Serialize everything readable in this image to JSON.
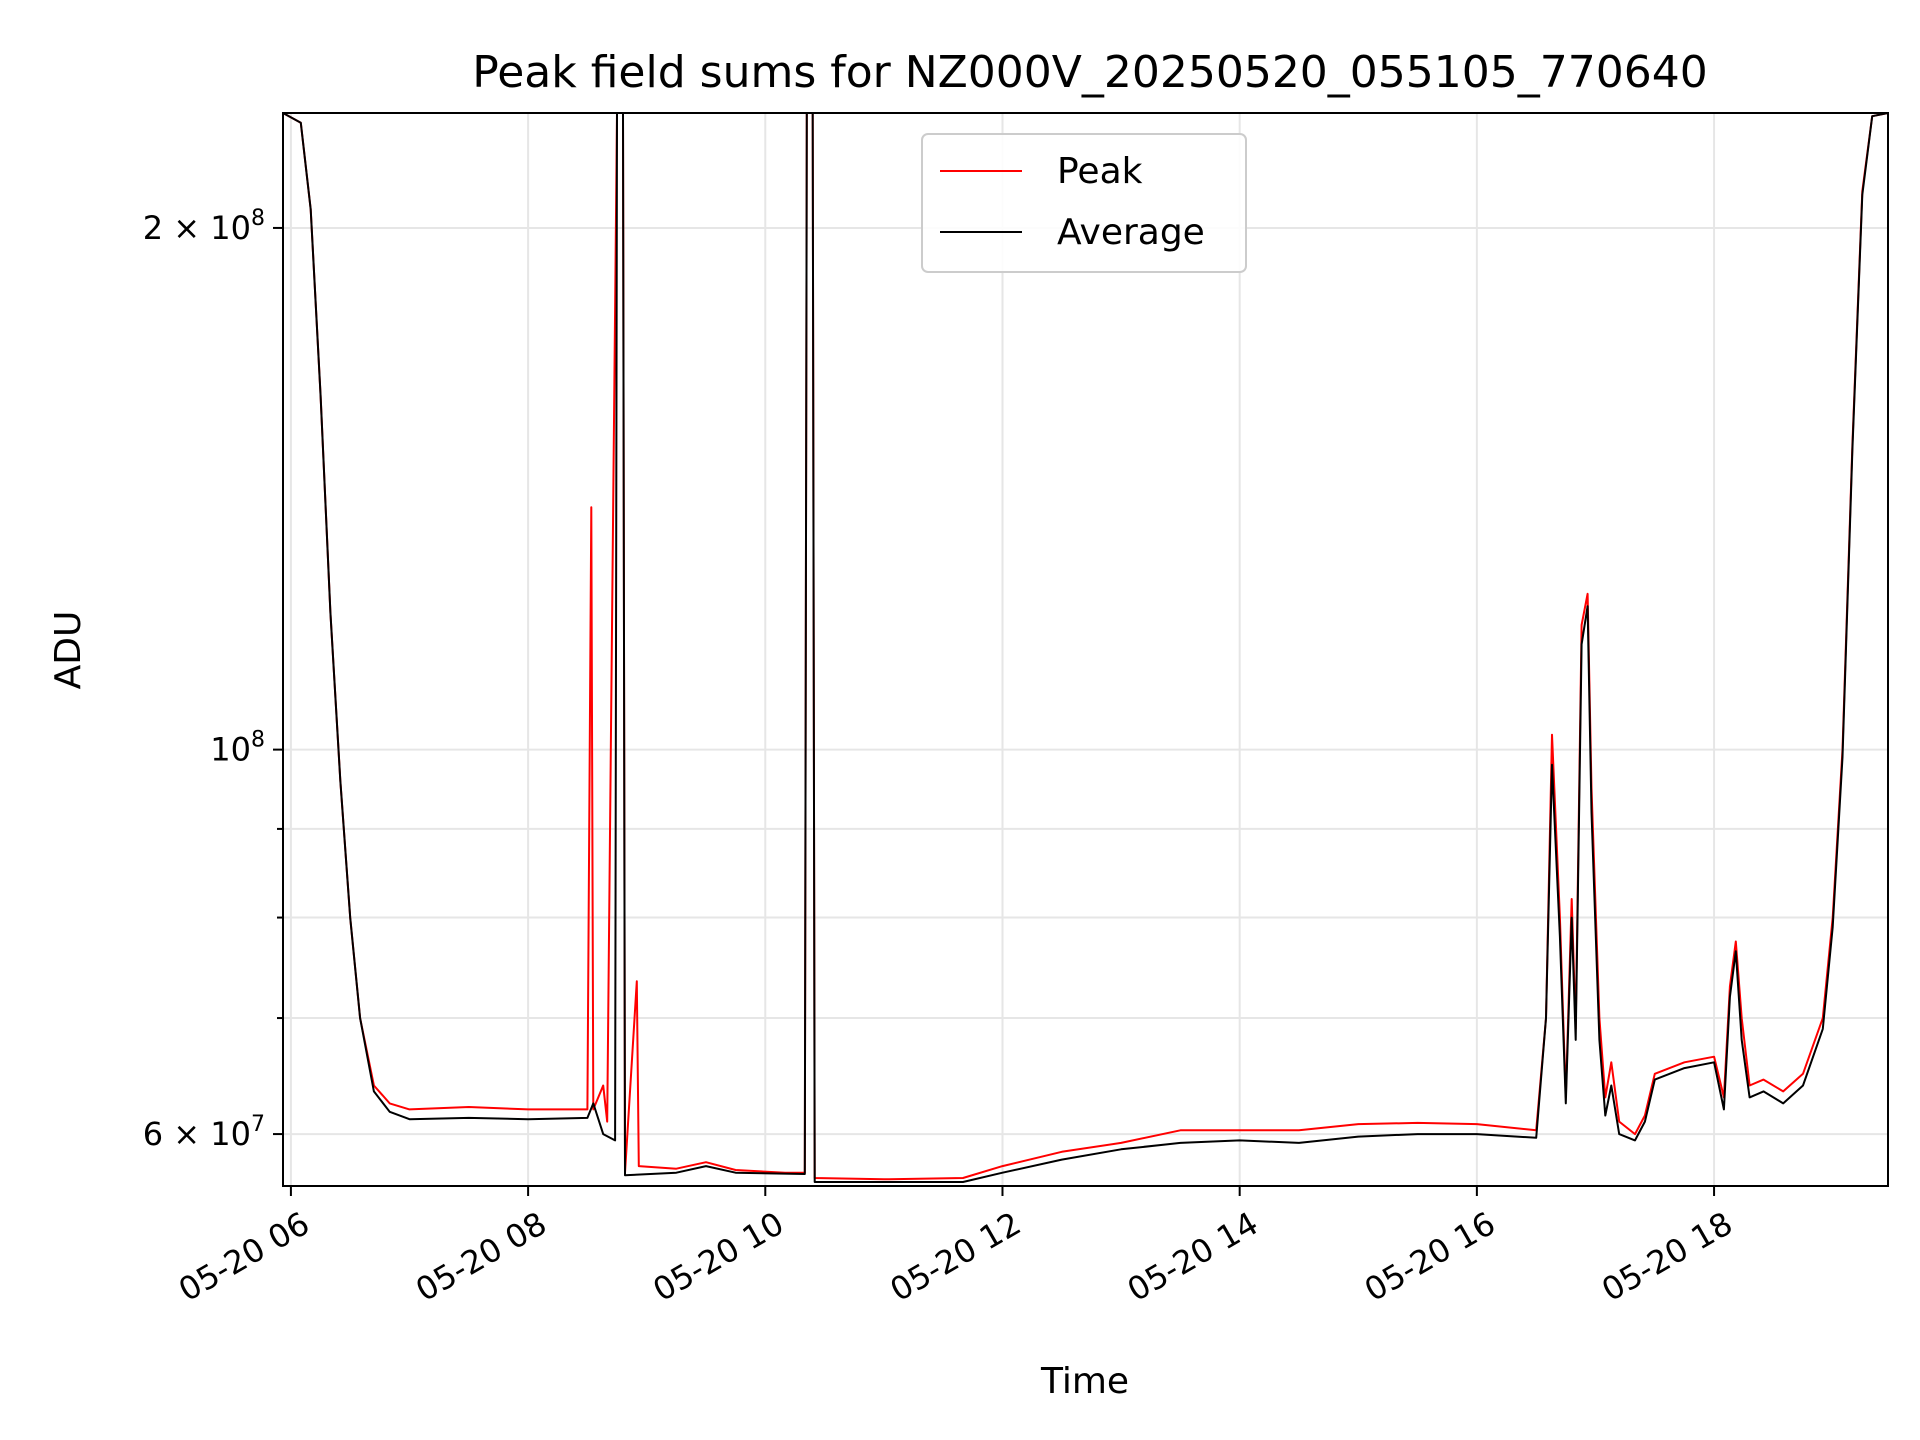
{
  "chart_data": {
    "type": "line",
    "title": "Peak field sums for NZ000V_20250520_055105_770640",
    "xlabel": "Time",
    "ylabel": "ADU",
    "y_scale": "log",
    "ylim": [
      56000000,
      233000000
    ],
    "xlim": [
      "05-20 05:56",
      "05-20 19:28"
    ],
    "x_ticks": [
      "05-20 06",
      "05-20 08",
      "05-20 10",
      "05-20 12",
      "05-20 14",
      "05-20 16",
      "05-20 18"
    ],
    "x_tick_values": [
      "05-20 06:00",
      "05-20 08:00",
      "05-20 10:00",
      "05-20 12:00",
      "05-20 14:00",
      "05-20 16:00",
      "05-20 18:00"
    ],
    "y_ticks": [
      {
        "label_base": "2 × 10",
        "label_exp": "8",
        "value": 200000000
      },
      {
        "label_base": "10",
        "label_exp": "8",
        "value": 100000000
      },
      {
        "label_base": "6 × 10",
        "label_exp": "7",
        "value": 60000000
      }
    ],
    "y_minor_ticks": [
      70000000,
      80000000,
      90000000
    ],
    "grid": true,
    "legend_position": "top-center",
    "series": [
      {
        "name": "Peak",
        "color": "#ff0000",
        "points": [
          [
            "05-20 05:56",
            233000000
          ],
          [
            "05-20 06:05",
            230000000
          ],
          [
            "05-20 06:10",
            205000000
          ],
          [
            "05-20 06:15",
            160000000
          ],
          [
            "05-20 06:20",
            120000000
          ],
          [
            "05-20 06:25",
            96000000
          ],
          [
            "05-20 06:30",
            80000000
          ],
          [
            "05-20 06:35",
            70000000
          ],
          [
            "05-20 06:42",
            64000000
          ],
          [
            "05-20 06:50",
            62500000
          ],
          [
            "05-20 07:00",
            62000000
          ],
          [
            "05-20 07:30",
            62200000
          ],
          [
            "05-20 08:00",
            62000000
          ],
          [
            "05-20 08:30",
            62000000
          ],
          [
            "05-20 08:32",
            138000000
          ],
          [
            "05-20 08:33",
            62000000
          ],
          [
            "05-20 08:38",
            64000000
          ],
          [
            "05-20 08:40",
            61000000
          ],
          [
            "05-20 08:45",
            233000000
          ],
          [
            "05-20 08:48",
            233000000
          ],
          [
            "05-20 08:49",
            57000000
          ],
          [
            "05-20 08:55",
            73500000
          ],
          [
            "05-20 08:56",
            57500000
          ],
          [
            "05-20 09:15",
            57300000
          ],
          [
            "05-20 09:30",
            57800000
          ],
          [
            "05-20 09:45",
            57200000
          ],
          [
            "05-20 10:10",
            57000000
          ],
          [
            "05-20 10:20",
            57000000
          ],
          [
            "05-20 10:21",
            233000000
          ],
          [
            "05-20 10:24",
            233000000
          ],
          [
            "05-20 10:25",
            56600000
          ],
          [
            "05-20 11:00",
            56500000
          ],
          [
            "05-20 11:40",
            56600000
          ],
          [
            "05-20 12:00",
            57500000
          ],
          [
            "05-20 12:30",
            58600000
          ],
          [
            "05-20 13:00",
            59300000
          ],
          [
            "05-20 13:30",
            60300000
          ],
          [
            "05-20 14:00",
            60300000
          ],
          [
            "05-20 14:30",
            60300000
          ],
          [
            "05-20 15:00",
            60800000
          ],
          [
            "05-20 15:30",
            60900000
          ],
          [
            "05-20 16:00",
            60800000
          ],
          [
            "05-20 16:30",
            60300000
          ],
          [
            "05-20 16:35",
            70000000
          ],
          [
            "05-20 16:38",
            102000000
          ],
          [
            "05-20 16:42",
            80000000
          ],
          [
            "05-20 16:45",
            63000000
          ],
          [
            "05-20 16:48",
            82000000
          ],
          [
            "05-20 16:50",
            69000000
          ],
          [
            "05-20 16:53",
            118000000
          ],
          [
            "05-20 16:56",
            123000000
          ],
          [
            "05-20 16:58",
            95000000
          ],
          [
            "05-20 17:02",
            70000000
          ],
          [
            "05-20 17:05",
            63000000
          ],
          [
            "05-20 17:08",
            66000000
          ],
          [
            "05-20 17:12",
            61000000
          ],
          [
            "05-20 17:20",
            60000000
          ],
          [
            "05-20 17:25",
            61500000
          ],
          [
            "05-20 17:30",
            65000000
          ],
          [
            "05-20 17:45",
            66000000
          ],
          [
            "05-20 18:00",
            66500000
          ],
          [
            "05-20 18:05",
            63000000
          ],
          [
            "05-20 18:08",
            73000000
          ],
          [
            "05-20 18:11",
            77500000
          ],
          [
            "05-20 18:14",
            70000000
          ],
          [
            "05-20 18:18",
            64000000
          ],
          [
            "05-20 18:25",
            64500000
          ],
          [
            "05-20 18:35",
            63500000
          ],
          [
            "05-20 18:45",
            65000000
          ],
          [
            "05-20 18:55",
            70000000
          ],
          [
            "05-20 19:00",
            80000000
          ],
          [
            "05-20 19:05",
            100000000
          ],
          [
            "05-20 19:10",
            150000000
          ],
          [
            "05-20 19:15",
            210000000
          ],
          [
            "05-20 19:20",
            232000000
          ],
          [
            "05-20 19:28",
            233000000
          ]
        ]
      },
      {
        "name": "Average",
        "color": "#000000",
        "points": [
          [
            "05-20 05:56",
            233000000
          ],
          [
            "05-20 06:05",
            230000000
          ],
          [
            "05-20 06:10",
            205000000
          ],
          [
            "05-20 06:15",
            160000000
          ],
          [
            "05-20 06:20",
            120000000
          ],
          [
            "05-20 06:25",
            96000000
          ],
          [
            "05-20 06:30",
            80000000
          ],
          [
            "05-20 06:35",
            70000000
          ],
          [
            "05-20 06:42",
            63500000
          ],
          [
            "05-20 06:50",
            61800000
          ],
          [
            "05-20 07:00",
            61200000
          ],
          [
            "05-20 07:30",
            61300000
          ],
          [
            "05-20 08:00",
            61200000
          ],
          [
            "05-20 08:30",
            61300000
          ],
          [
            "05-20 08:33",
            62500000
          ],
          [
            "05-20 08:38",
            60000000
          ],
          [
            "05-20 08:44",
            59500000
          ],
          [
            "05-20 08:45",
            233000000
          ],
          [
            "05-20 08:48",
            233000000
          ],
          [
            "05-20 08:49",
            56800000
          ],
          [
            "05-20 09:15",
            57000000
          ],
          [
            "05-20 09:30",
            57500000
          ],
          [
            "05-20 09:45",
            57000000
          ],
          [
            "05-20 10:20",
            56900000
          ],
          [
            "05-20 10:21",
            233000000
          ],
          [
            "05-20 10:24",
            233000000
          ],
          [
            "05-20 10:25",
            56300000
          ],
          [
            "05-20 11:00",
            56300000
          ],
          [
            "05-20 11:40",
            56300000
          ],
          [
            "05-20 12:00",
            57000000
          ],
          [
            "05-20 12:30",
            58000000
          ],
          [
            "05-20 13:00",
            58800000
          ],
          [
            "05-20 13:30",
            59300000
          ],
          [
            "05-20 14:00",
            59500000
          ],
          [
            "05-20 14:30",
            59300000
          ],
          [
            "05-20 15:00",
            59800000
          ],
          [
            "05-20 15:30",
            60000000
          ],
          [
            "05-20 16:00",
            60000000
          ],
          [
            "05-20 16:30",
            59700000
          ],
          [
            "05-20 16:35",
            70000000
          ],
          [
            "05-20 16:38",
            98000000
          ],
          [
            "05-20 16:42",
            78000000
          ],
          [
            "05-20 16:45",
            62500000
          ],
          [
            "05-20 16:48",
            80000000
          ],
          [
            "05-20 16:50",
            68000000
          ],
          [
            "05-20 16:53",
            115000000
          ],
          [
            "05-20 16:56",
            121000000
          ],
          [
            "05-20 16:58",
            92000000
          ],
          [
            "05-20 17:02",
            68000000
          ],
          [
            "05-20 17:05",
            61500000
          ],
          [
            "05-20 17:08",
            64000000
          ],
          [
            "05-20 17:12",
            60000000
          ],
          [
            "05-20 17:20",
            59500000
          ],
          [
            "05-20 17:25",
            61000000
          ],
          [
            "05-20 17:30",
            64500000
          ],
          [
            "05-20 17:45",
            65500000
          ],
          [
            "05-20 18:00",
            66000000
          ],
          [
            "05-20 18:05",
            62000000
          ],
          [
            "05-20 18:08",
            72000000
          ],
          [
            "05-20 18:11",
            76500000
          ],
          [
            "05-20 18:14",
            68000000
          ],
          [
            "05-20 18:18",
            63000000
          ],
          [
            "05-20 18:25",
            63500000
          ],
          [
            "05-20 18:35",
            62500000
          ],
          [
            "05-20 18:45",
            64000000
          ],
          [
            "05-20 18:55",
            69000000
          ],
          [
            "05-20 19:00",
            79000000
          ],
          [
            "05-20 19:05",
            99000000
          ],
          [
            "05-20 19:10",
            149000000
          ],
          [
            "05-20 19:15",
            209000000
          ],
          [
            "05-20 19:20",
            232000000
          ],
          [
            "05-20 19:28",
            233000000
          ]
        ]
      }
    ]
  }
}
